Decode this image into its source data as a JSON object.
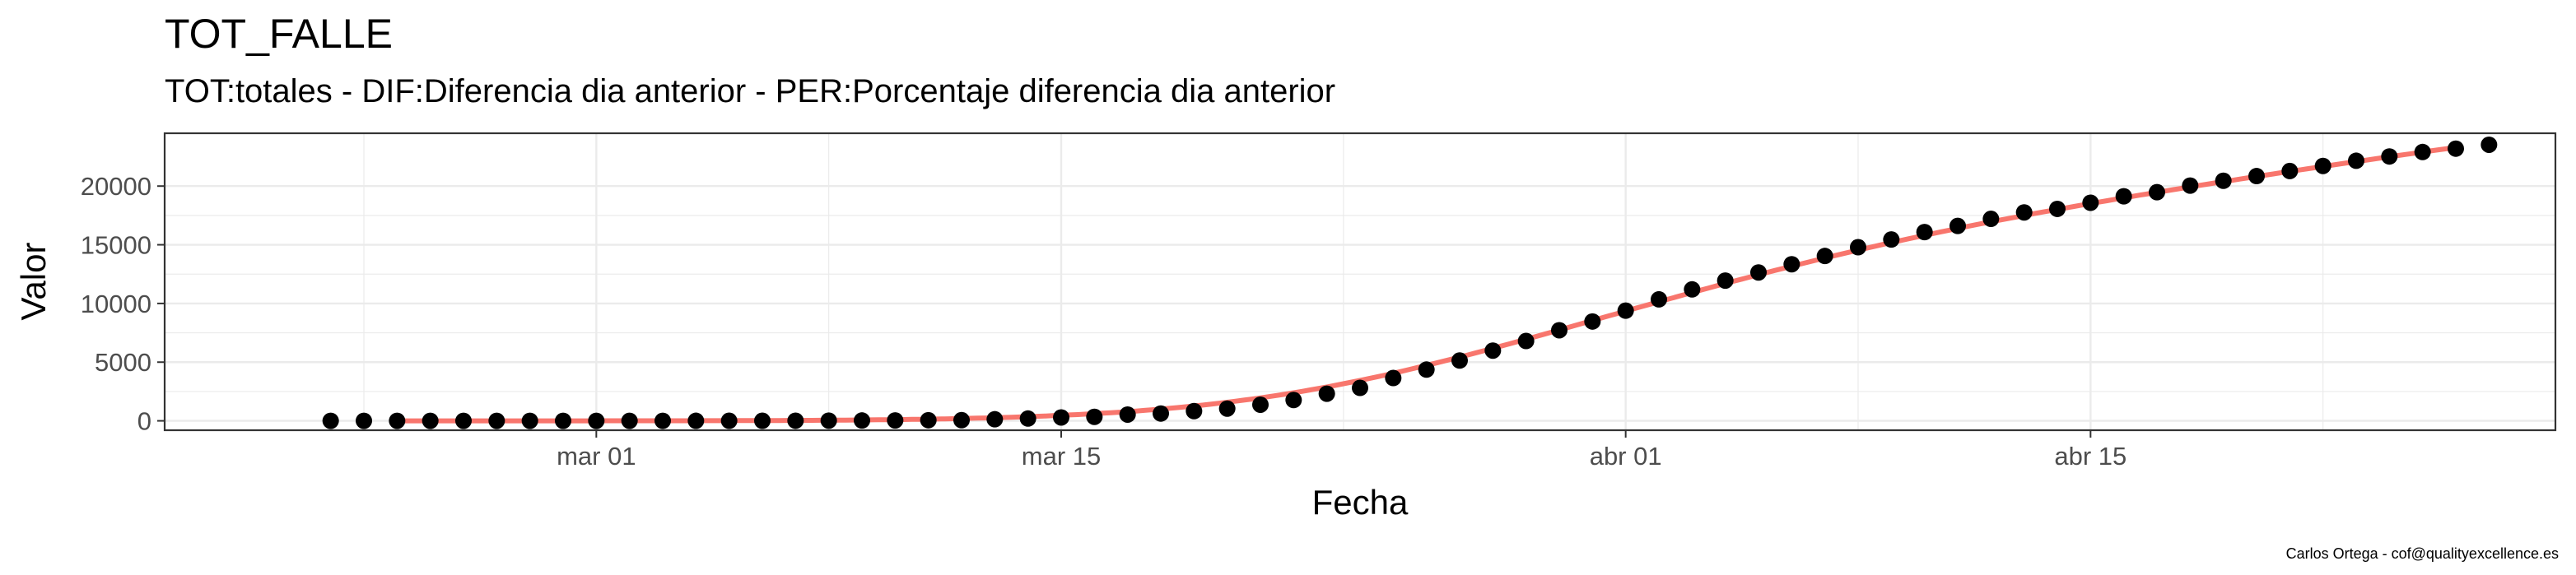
{
  "chart_data": {
    "type": "scatter",
    "title": "TOT_FALLE",
    "subtitle": "TOT:totales - DIF:Diferencia dia anterior - PER:Porcentaje diferencia dia anterior",
    "xlabel": "Fecha",
    "ylabel": "Valor",
    "caption": "Carlos Ortega - cof@qualityexcellence.es",
    "xlim": [
      "2020-02-17",
      "2020-04-29"
    ],
    "ylim": [
      -800,
      24500
    ],
    "x_ticks": [
      {
        "date": "2020-03-01",
        "label": "mar 01"
      },
      {
        "date": "2020-03-15",
        "label": "mar 15"
      },
      {
        "date": "2020-04-01",
        "label": "abr 01"
      },
      {
        "date": "2020-04-15",
        "label": "abr 15"
      }
    ],
    "y_ticks": [
      0,
      5000,
      10000,
      15000,
      20000
    ],
    "grid": true,
    "points_color": "#000000",
    "smooth_color": "#f8766d",
    "smooth_range": [
      "2020-02-24",
      "2020-04-26"
    ],
    "points": [
      {
        "x": "2020-02-22",
        "y": 0
      },
      {
        "x": "2020-02-23",
        "y": 0
      },
      {
        "x": "2020-02-24",
        "y": 0
      },
      {
        "x": "2020-02-25",
        "y": 0
      },
      {
        "x": "2020-02-26",
        "y": 0
      },
      {
        "x": "2020-02-27",
        "y": 0
      },
      {
        "x": "2020-02-28",
        "y": 0
      },
      {
        "x": "2020-02-29",
        "y": 0
      },
      {
        "x": "2020-03-01",
        "y": 0
      },
      {
        "x": "2020-03-02",
        "y": 0
      },
      {
        "x": "2020-03-03",
        "y": 1
      },
      {
        "x": "2020-03-04",
        "y": 2
      },
      {
        "x": "2020-03-05",
        "y": 3
      },
      {
        "x": "2020-03-06",
        "y": 5
      },
      {
        "x": "2020-03-07",
        "y": 10
      },
      {
        "x": "2020-03-08",
        "y": 17
      },
      {
        "x": "2020-03-09",
        "y": 28
      },
      {
        "x": "2020-03-10",
        "y": 35
      },
      {
        "x": "2020-03-11",
        "y": 54
      },
      {
        "x": "2020-03-12",
        "y": 55
      },
      {
        "x": "2020-03-13",
        "y": 133
      },
      {
        "x": "2020-03-14",
        "y": 195
      },
      {
        "x": "2020-03-15",
        "y": 289
      },
      {
        "x": "2020-03-16",
        "y": 342
      },
      {
        "x": "2020-03-17",
        "y": 533
      },
      {
        "x": "2020-03-18",
        "y": 623
      },
      {
        "x": "2020-03-19",
        "y": 830
      },
      {
        "x": "2020-03-20",
        "y": 1043
      },
      {
        "x": "2020-03-21",
        "y": 1375
      },
      {
        "x": "2020-03-22",
        "y": 1772
      },
      {
        "x": "2020-03-23",
        "y": 2311
      },
      {
        "x": "2020-03-24",
        "y": 2808
      },
      {
        "x": "2020-03-25",
        "y": 3647
      },
      {
        "x": "2020-03-26",
        "y": 4365
      },
      {
        "x": "2020-03-27",
        "y": 5138
      },
      {
        "x": "2020-03-28",
        "y": 5982
      },
      {
        "x": "2020-03-29",
        "y": 6803
      },
      {
        "x": "2020-03-30",
        "y": 7716
      },
      {
        "x": "2020-03-31",
        "y": 8464
      },
      {
        "x": "2020-04-01",
        "y": 9387
      },
      {
        "x": "2020-04-02",
        "y": 10348
      },
      {
        "x": "2020-04-03",
        "y": 11198
      },
      {
        "x": "2020-04-04",
        "y": 11947
      },
      {
        "x": "2020-04-05",
        "y": 12641
      },
      {
        "x": "2020-04-06",
        "y": 13341
      },
      {
        "x": "2020-04-07",
        "y": 14045
      },
      {
        "x": "2020-04-08",
        "y": 14792
      },
      {
        "x": "2020-04-09",
        "y": 15447
      },
      {
        "x": "2020-04-10",
        "y": 16081
      },
      {
        "x": "2020-04-11",
        "y": 16606
      },
      {
        "x": "2020-04-12",
        "y": 17209
      },
      {
        "x": "2020-04-13",
        "y": 17756
      },
      {
        "x": "2020-04-14",
        "y": 18056
      },
      {
        "x": "2020-04-15",
        "y": 18579
      },
      {
        "x": "2020-04-16",
        "y": 19130
      },
      {
        "x": "2020-04-17",
        "y": 19478
      },
      {
        "x": "2020-04-18",
        "y": 20043
      },
      {
        "x": "2020-04-19",
        "y": 20453
      },
      {
        "x": "2020-04-20",
        "y": 20852
      },
      {
        "x": "2020-04-21",
        "y": 21282
      },
      {
        "x": "2020-04-22",
        "y": 21717
      },
      {
        "x": "2020-04-23",
        "y": 22157
      },
      {
        "x": "2020-04-24",
        "y": 22524
      },
      {
        "x": "2020-04-25",
        "y": 22902
      },
      {
        "x": "2020-04-26",
        "y": 23190
      },
      {
        "x": "2020-04-27",
        "y": 23521
      }
    ]
  }
}
